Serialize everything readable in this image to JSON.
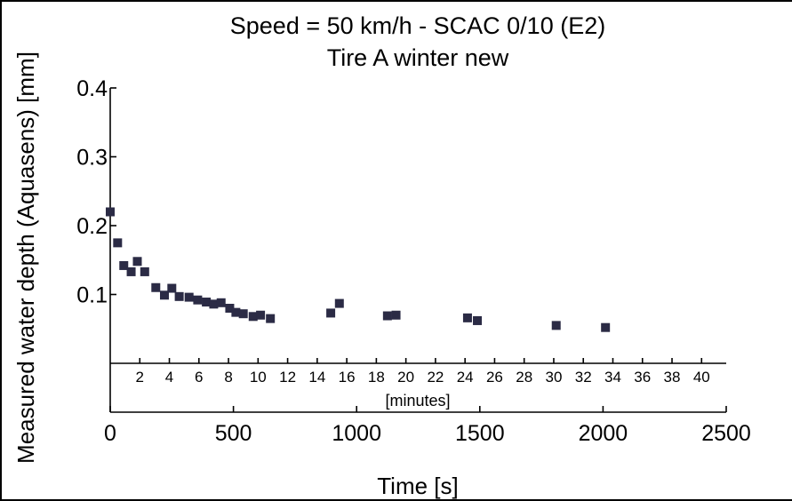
{
  "chart_data": {
    "type": "scatter",
    "title": "Speed = 50 km/h  -  SCAC 0/10 (E2)",
    "subtitle": "Tire A winter new",
    "xlabel": "Time [s]",
    "ylabel": "Measured water depth (Aquasens) [mm]",
    "xlim": [
      0,
      2500
    ],
    "ylim": [
      0,
      0.4
    ],
    "x_ticks": [
      "0",
      "500",
      "1000",
      "1500",
      "2000",
      "2500"
    ],
    "y_ticks": [
      "0.1",
      "0.2",
      "0.3",
      "0.4"
    ],
    "secondary_axis": {
      "label": "[minutes]",
      "ticks": [
        "2",
        "4",
        "6",
        "8",
        "10",
        "12",
        "14",
        "16",
        "18",
        "20",
        "22",
        "24",
        "26",
        "28",
        "30",
        "32",
        "34",
        "36",
        "38",
        "40"
      ]
    },
    "marker_color": "#2b2b45",
    "points": [
      {
        "x": 0,
        "y": 0.22
      },
      {
        "x": 30,
        "y": 0.175
      },
      {
        "x": 55,
        "y": 0.142
      },
      {
        "x": 85,
        "y": 0.133
      },
      {
        "x": 110,
        "y": 0.148
      },
      {
        "x": 140,
        "y": 0.133
      },
      {
        "x": 185,
        "y": 0.11
      },
      {
        "x": 220,
        "y": 0.099
      },
      {
        "x": 250,
        "y": 0.109
      },
      {
        "x": 280,
        "y": 0.097
      },
      {
        "x": 320,
        "y": 0.096
      },
      {
        "x": 355,
        "y": 0.092
      },
      {
        "x": 390,
        "y": 0.089
      },
      {
        "x": 420,
        "y": 0.086
      },
      {
        "x": 450,
        "y": 0.088
      },
      {
        "x": 485,
        "y": 0.08
      },
      {
        "x": 510,
        "y": 0.074
      },
      {
        "x": 540,
        "y": 0.072
      },
      {
        "x": 580,
        "y": 0.068
      },
      {
        "x": 610,
        "y": 0.07
      },
      {
        "x": 650,
        "y": 0.065
      },
      {
        "x": 895,
        "y": 0.073
      },
      {
        "x": 930,
        "y": 0.087
      },
      {
        "x": 1125,
        "y": 0.069
      },
      {
        "x": 1160,
        "y": 0.07
      },
      {
        "x": 1450,
        "y": 0.066
      },
      {
        "x": 1490,
        "y": 0.062
      },
      {
        "x": 1810,
        "y": 0.055
      },
      {
        "x": 2010,
        "y": 0.052
      }
    ]
  }
}
